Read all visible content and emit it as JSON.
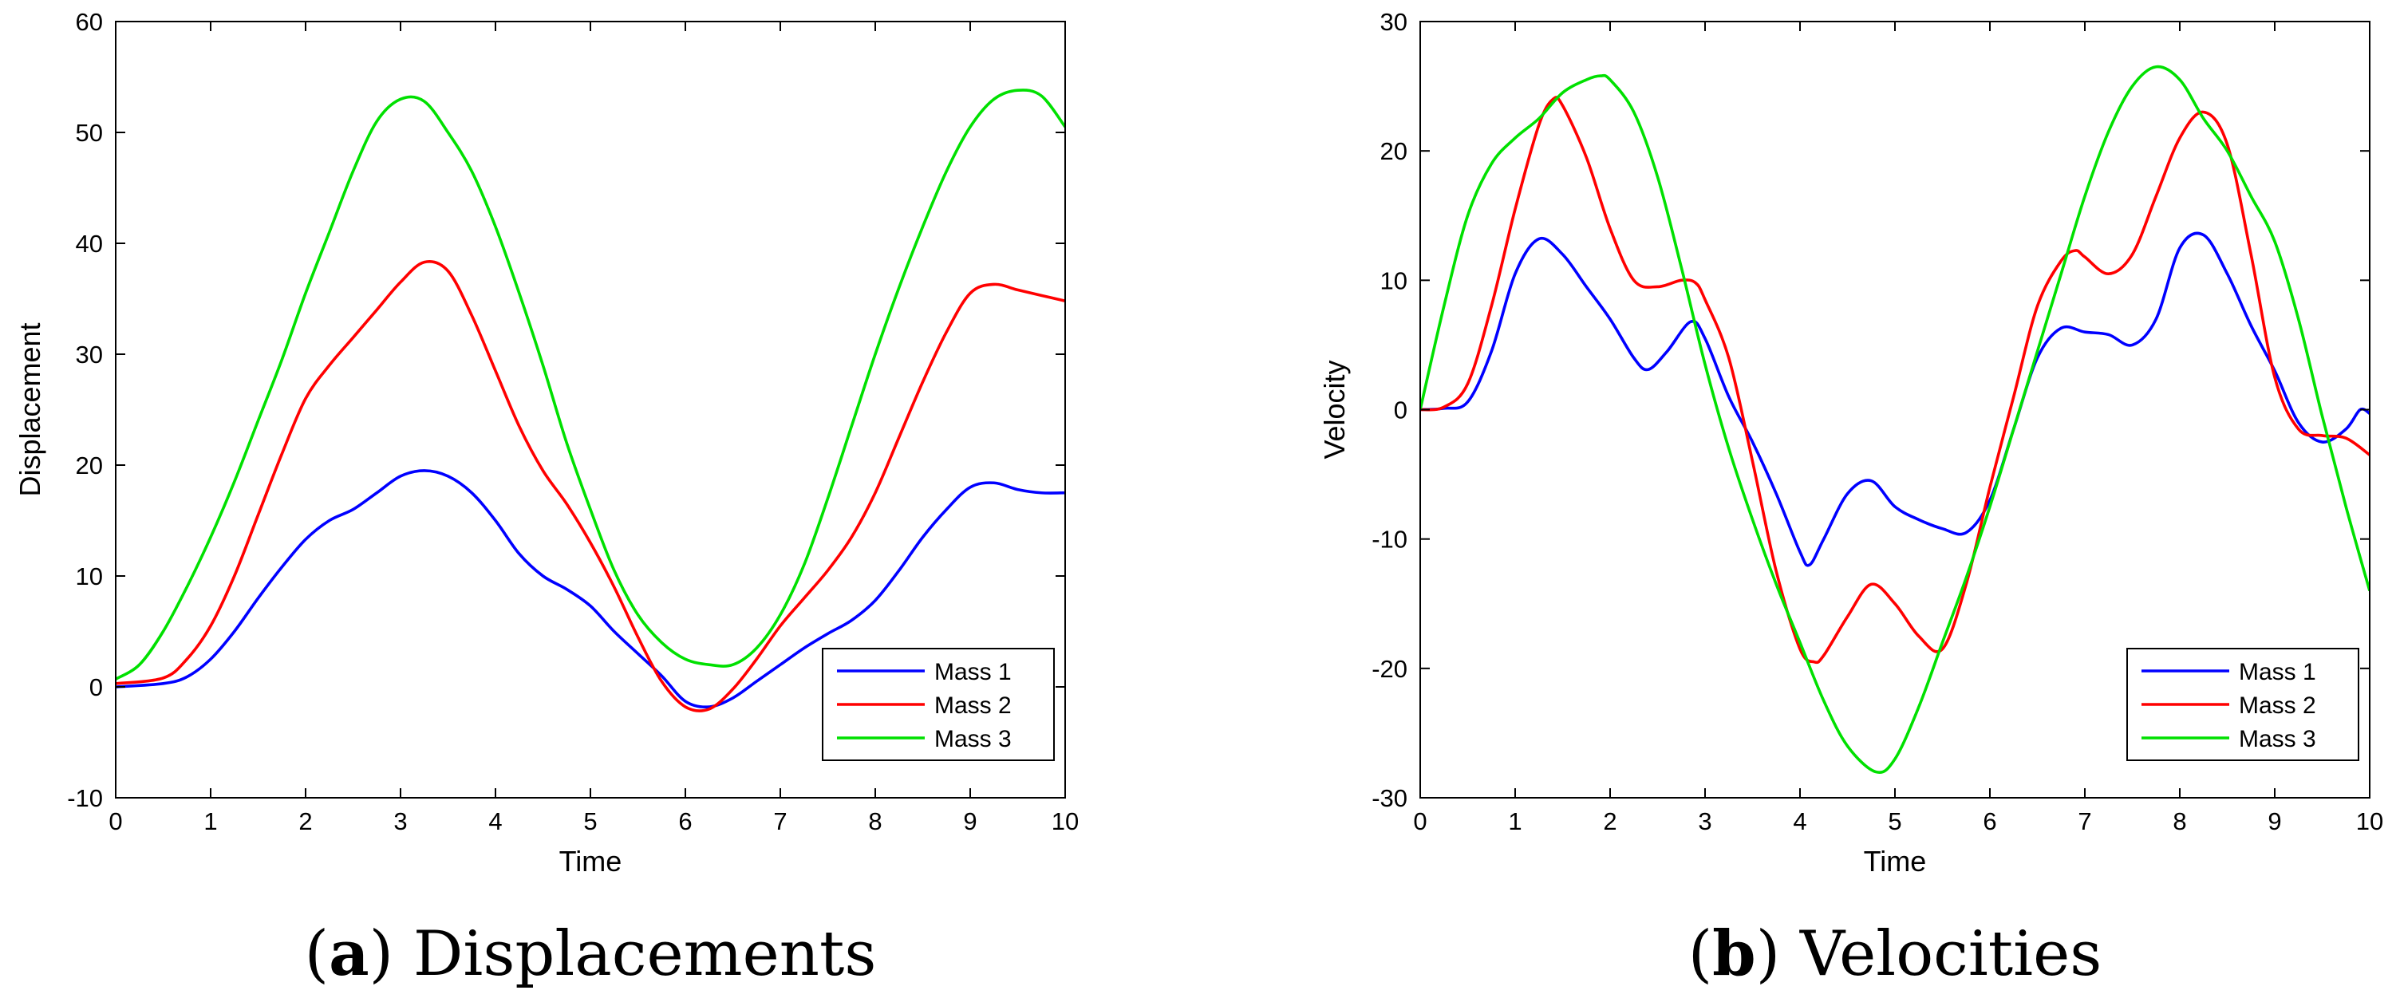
{
  "chart_data": [
    {
      "type": "line",
      "caption_label": "a",
      "caption_text": "Displacements",
      "xlabel": "Time",
      "ylabel": "Displacement",
      "xlim": [
        0,
        10
      ],
      "ylim": [
        -10,
        60
      ],
      "xticks": [
        "0",
        "1",
        "2",
        "3",
        "4",
        "5",
        "6",
        "7",
        "8",
        "9",
        "10"
      ],
      "yticks": [
        "-10",
        "0",
        "10",
        "20",
        "30",
        "40",
        "50",
        "60"
      ],
      "grid": false,
      "legend": "bottom-right",
      "series": [
        {
          "name": "Mass 1",
          "color": "#0000ff",
          "x": [
            0,
            0.5,
            0.75,
            1,
            1.25,
            1.5,
            1.75,
            2,
            2.25,
            2.5,
            2.75,
            3,
            3.25,
            3.5,
            3.75,
            4,
            4.25,
            4.5,
            4.75,
            5,
            5.25,
            5.5,
            5.75,
            6,
            6.25,
            6.5,
            6.75,
            7,
            7.25,
            7.5,
            7.75,
            8,
            8.25,
            8.5,
            8.75,
            9,
            9.25,
            9.5,
            9.75,
            10
          ],
          "y": [
            0,
            0.3,
            0.9,
            2.5,
            5.0,
            8.0,
            10.8,
            13.3,
            15.0,
            16.0,
            17.5,
            19.0,
            19.5,
            19.0,
            17.5,
            15.0,
            12.0,
            10.0,
            8.8,
            7.3,
            5.0,
            3.0,
            1.0,
            -1.3,
            -1.8,
            -1.0,
            0.5,
            2.0,
            3.5,
            4.8,
            6.0,
            7.8,
            10.5,
            13.5,
            16.0,
            18.0,
            18.4,
            17.8,
            17.5,
            17.5
          ]
        },
        {
          "name": "Mass 2",
          "color": "#ff0000",
          "x": [
            0,
            0.5,
            0.75,
            1,
            1.25,
            1.5,
            1.75,
            2,
            2.25,
            2.5,
            2.75,
            3,
            3.25,
            3.5,
            3.75,
            4,
            4.25,
            4.5,
            4.75,
            5,
            5.25,
            5.5,
            5.75,
            6,
            6.25,
            6.5,
            6.75,
            7,
            7.25,
            7.5,
            7.75,
            8,
            8.25,
            8.5,
            8.75,
            9,
            9.25,
            9.5,
            9.75,
            10
          ],
          "y": [
            0.3,
            0.8,
            2.5,
            5.5,
            10.0,
            15.5,
            21.0,
            26.0,
            29.0,
            31.5,
            34.0,
            36.5,
            38.3,
            37.5,
            33.5,
            28.5,
            23.5,
            19.5,
            16.5,
            13.0,
            9.0,
            4.5,
            0.5,
            -1.8,
            -2.0,
            -0.2,
            2.5,
            5.5,
            8.0,
            10.5,
            13.5,
            17.5,
            22.5,
            27.5,
            32.0,
            35.5,
            36.3,
            35.8,
            35.3,
            34.8
          ]
        },
        {
          "name": "Mass 3",
          "color": "#00e000",
          "x": [
            0,
            0.25,
            0.5,
            0.75,
            1,
            1.25,
            1.5,
            1.75,
            2,
            2.25,
            2.5,
            2.75,
            3,
            3.25,
            3.5,
            3.75,
            4,
            4.25,
            4.5,
            4.75,
            5,
            5.25,
            5.5,
            5.75,
            6,
            6.25,
            6.5,
            6.75,
            7,
            7.25,
            7.5,
            7.75,
            8,
            8.25,
            8.5,
            8.75,
            9,
            9.25,
            9.5,
            9.75,
            10
          ],
          "y": [
            0.7,
            2.0,
            5.0,
            9.0,
            13.5,
            18.5,
            24.0,
            29.5,
            35.5,
            41.0,
            46.5,
            51.0,
            53.0,
            52.8,
            50.0,
            46.5,
            41.5,
            35.5,
            29.0,
            22.0,
            16.0,
            10.5,
            6.5,
            4.0,
            2.5,
            2.0,
            2.0,
            3.5,
            6.5,
            11.0,
            17.0,
            23.5,
            30.0,
            36.0,
            41.5,
            46.5,
            50.5,
            53.0,
            53.8,
            53.3,
            50.5
          ]
        }
      ]
    },
    {
      "type": "line",
      "caption_label": "b",
      "caption_text": "Velocities",
      "xlabel": "Time",
      "ylabel": "Velocity",
      "xlim": [
        0,
        10
      ],
      "ylim": [
        -30,
        30
      ],
      "xticks": [
        "0",
        "1",
        "2",
        "3",
        "4",
        "5",
        "6",
        "7",
        "8",
        "9",
        "10"
      ],
      "yticks": [
        "-30",
        "-20",
        "-10",
        "0",
        "10",
        "20",
        "30"
      ],
      "grid": false,
      "legend": "bottom-right",
      "series": [
        {
          "name": "Mass 1",
          "color": "#0000ff",
          "x": [
            0,
            0.25,
            0.5,
            0.75,
            1,
            1.25,
            1.5,
            1.75,
            2,
            2.25,
            2.4,
            2.6,
            2.85,
            3,
            3.25,
            3.5,
            3.75,
            4,
            4.1,
            4.25,
            4.5,
            4.75,
            5,
            5.25,
            5.5,
            5.75,
            6,
            6.25,
            6.5,
            6.75,
            7,
            7.25,
            7.5,
            7.75,
            8,
            8.25,
            8.5,
            8.75,
            9,
            9.25,
            9.5,
            9.75,
            9.9,
            10
          ],
          "y": [
            0,
            0.1,
            0.6,
            4.5,
            10.5,
            13.2,
            12.0,
            9.5,
            7.0,
            4.0,
            3.1,
            4.5,
            6.8,
            5.5,
            1.0,
            -2.5,
            -6.5,
            -11.0,
            -12.0,
            -10.0,
            -6.5,
            -5.5,
            -7.5,
            -8.5,
            -9.2,
            -9.5,
            -7.0,
            -1.5,
            4.0,
            6.3,
            6.0,
            5.8,
            5.0,
            7.0,
            12.5,
            13.5,
            10.5,
            6.5,
            3.0,
            -1.0,
            -2.5,
            -1.5,
            0,
            -0.3
          ]
        },
        {
          "name": "Mass 2",
          "color": "#ff0000",
          "x": [
            0,
            0.25,
            0.5,
            0.75,
            1,
            1.25,
            1.4,
            1.5,
            1.75,
            2,
            2.25,
            2.5,
            2.75,
            2.9,
            3,
            3.25,
            3.5,
            3.75,
            4,
            4.15,
            4.25,
            4.5,
            4.75,
            5,
            5.25,
            5.5,
            5.75,
            6,
            6.25,
            6.5,
            6.75,
            6.9,
            7,
            7.25,
            7.5,
            7.75,
            8,
            8.25,
            8.5,
            8.75,
            9,
            9.25,
            9.5,
            9.75,
            10
          ],
          "y": [
            0,
            0.2,
            2.0,
            8.0,
            15.5,
            22.0,
            24.0,
            23.5,
            19.5,
            14.0,
            10.0,
            9.5,
            10.0,
            9.8,
            8.5,
            4.0,
            -4.0,
            -12.5,
            -18.5,
            -19.5,
            -19.0,
            -16.0,
            -13.5,
            -15.0,
            -17.5,
            -18.5,
            -13.5,
            -6.0,
            1.0,
            8.0,
            11.5,
            12.3,
            11.8,
            10.5,
            12.0,
            16.5,
            21.0,
            23.0,
            20.5,
            12.0,
            2.5,
            -1.5,
            -2.0,
            -2.2,
            -3.5
          ]
        },
        {
          "name": "Mass 3",
          "color": "#00e000",
          "x": [
            0,
            0.25,
            0.5,
            0.75,
            1,
            1.25,
            1.5,
            1.75,
            1.9,
            2,
            2.25,
            2.5,
            2.75,
            3,
            3.25,
            3.5,
            3.75,
            4,
            4.25,
            4.5,
            4.8,
            5,
            5.25,
            5.5,
            5.75,
            6,
            6.25,
            6.5,
            6.75,
            7,
            7.25,
            7.5,
            7.75,
            8,
            8.25,
            8.5,
            8.75,
            9,
            9.25,
            9.5,
            9.75,
            10
          ],
          "y": [
            0,
            8.0,
            15.0,
            19.0,
            21.0,
            22.5,
            24.5,
            25.5,
            25.8,
            25.5,
            23.0,
            18.0,
            11.0,
            3.5,
            -3.0,
            -8.5,
            -13.5,
            -18.0,
            -22.5,
            -26.0,
            -28.0,
            -27.0,
            -23.0,
            -18.0,
            -13.0,
            -7.5,
            -1.5,
            4.5,
            10.5,
            16.5,
            21.5,
            25.0,
            26.5,
            25.5,
            22.5,
            20.0,
            16.5,
            13.0,
            7.0,
            -0.5,
            -7.5,
            -14.0
          ]
        }
      ]
    }
  ]
}
